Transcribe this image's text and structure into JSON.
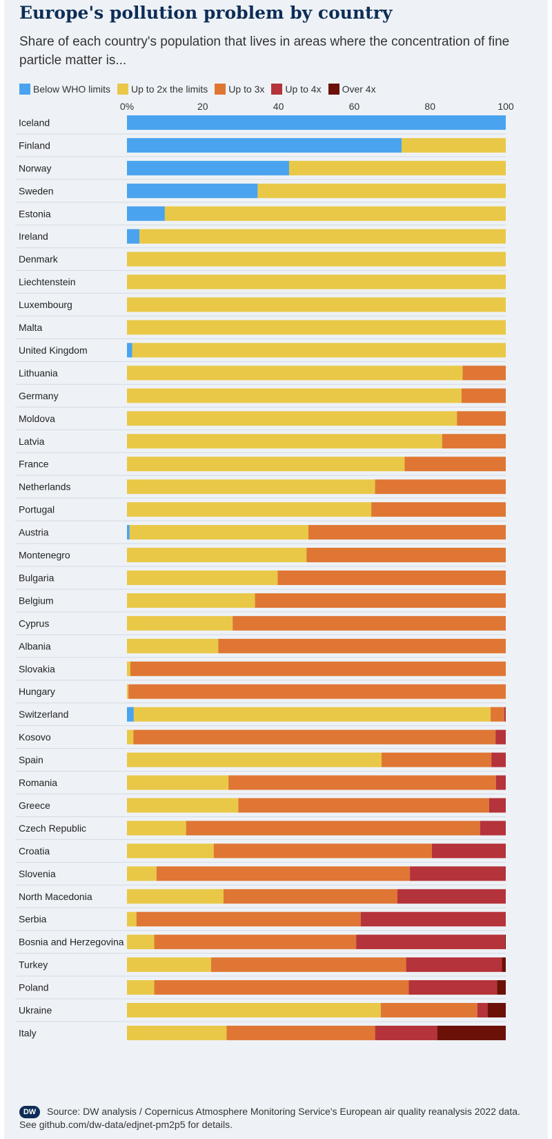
{
  "title": "Europe's pollution problem by country",
  "subtitle": "Share of each country's population that lives in areas where the concentration of fine particle matter is...",
  "source_line1": "Source: DW analysis / Copernicus Atmosphere Monitoring Service's European air quality reanalysis 2022 data.",
  "source_line2": "See github.com/dw-data/edjnet-pm2p5 for details.",
  "logo_text": "DW",
  "chart_data": {
    "type": "bar",
    "orientation": "horizontal",
    "stacked": true,
    "xlim": [
      0,
      100
    ],
    "x_ticks": [
      "0%",
      "20",
      "40",
      "60",
      "80",
      "100"
    ],
    "grid": false,
    "legend_position": "top",
    "categories": [
      "Iceland",
      "Finland",
      "Norway",
      "Sweden",
      "Estonia",
      "Ireland",
      "Denmark",
      "Liechtenstein",
      "Luxembourg",
      "Malta",
      "United Kingdom",
      "Lithuania",
      "Germany",
      "Moldova",
      "Latvia",
      "France",
      "Netherlands",
      "Portugal",
      "Austria",
      "Montenegro",
      "Bulgaria",
      "Belgium",
      "Cyprus",
      "Albania",
      "Slovakia",
      "Hungary",
      "Switzerland",
      "Kosovo",
      "Spain",
      "Romania",
      "Greece",
      "Czech Republic",
      "Croatia",
      "Slovenia",
      "North Macedonia",
      "Serbia",
      "Bosnia and Herzegovina",
      "Turkey",
      "Poland",
      "Ukraine",
      "Italy"
    ],
    "series": [
      {
        "name": "Below WHO limits",
        "color": "#4aa3ee",
        "values": [
          100,
          72.5,
          42.8,
          34.5,
          10,
          3.3,
          0,
          0,
          0,
          0,
          1.4,
          0,
          0,
          0,
          0,
          0,
          0,
          0,
          0.7,
          0,
          0,
          0,
          0,
          0,
          0,
          0,
          1.8,
          0,
          0,
          0,
          0,
          0,
          0,
          0,
          0,
          0,
          0,
          0,
          0,
          0,
          0
        ]
      },
      {
        "name": "Up to 2x the limits",
        "color": "#e9c847",
        "values": [
          0,
          27.5,
          57.2,
          65.5,
          90,
          96.7,
          100,
          100,
          100,
          100,
          98.6,
          88.6,
          88.3,
          87.1,
          83.2,
          73.3,
          65.5,
          64.5,
          47.2,
          47.4,
          39.8,
          33.8,
          27.9,
          24.1,
          0.9,
          0.4,
          94.2,
          1.7,
          67.2,
          26.8,
          29.4,
          15.6,
          22.9,
          7.8,
          25.5,
          2.5,
          7.2,
          22.2,
          7.2,
          67,
          26.3
        ]
      },
      {
        "name": "Up to 3x",
        "color": "#df7634",
        "values": [
          0,
          0,
          0,
          0,
          0,
          0,
          0,
          0,
          0,
          0,
          0,
          11.4,
          11.7,
          12.9,
          16.8,
          26.7,
          34.5,
          35.5,
          52.1,
          52.6,
          60.2,
          66.2,
          72.1,
          75.9,
          99.1,
          99.6,
          3.6,
          95.6,
          29,
          70.6,
          66.2,
          77.6,
          57.6,
          66.9,
          45.9,
          59.2,
          53.3,
          51.5,
          67.2,
          25.5,
          39.2
        ]
      },
      {
        "name": "Up to 4x",
        "color": "#b5333a",
        "values": [
          0,
          0,
          0,
          0,
          0,
          0,
          0,
          0,
          0,
          0,
          0,
          0,
          0,
          0,
          0,
          0,
          0,
          0,
          0,
          0,
          0,
          0,
          0,
          0,
          0,
          0,
          0.4,
          2.7,
          3.8,
          2.6,
          4.4,
          6.8,
          19.5,
          25.3,
          28.6,
          38.3,
          39.3,
          25.3,
          23.3,
          2.7,
          16.4
        ]
      },
      {
        "name": "Over 4x",
        "color": "#6b1108",
        "values": [
          0,
          0,
          0,
          0,
          0,
          0,
          0,
          0,
          0,
          0,
          0,
          0,
          0,
          0,
          0,
          0,
          0,
          0,
          0,
          0,
          0,
          0,
          0,
          0,
          0,
          0,
          0,
          0,
          0,
          0,
          0,
          0,
          0,
          0,
          0,
          0,
          0.2,
          1,
          2.3,
          4.8,
          18.1
        ]
      }
    ]
  }
}
